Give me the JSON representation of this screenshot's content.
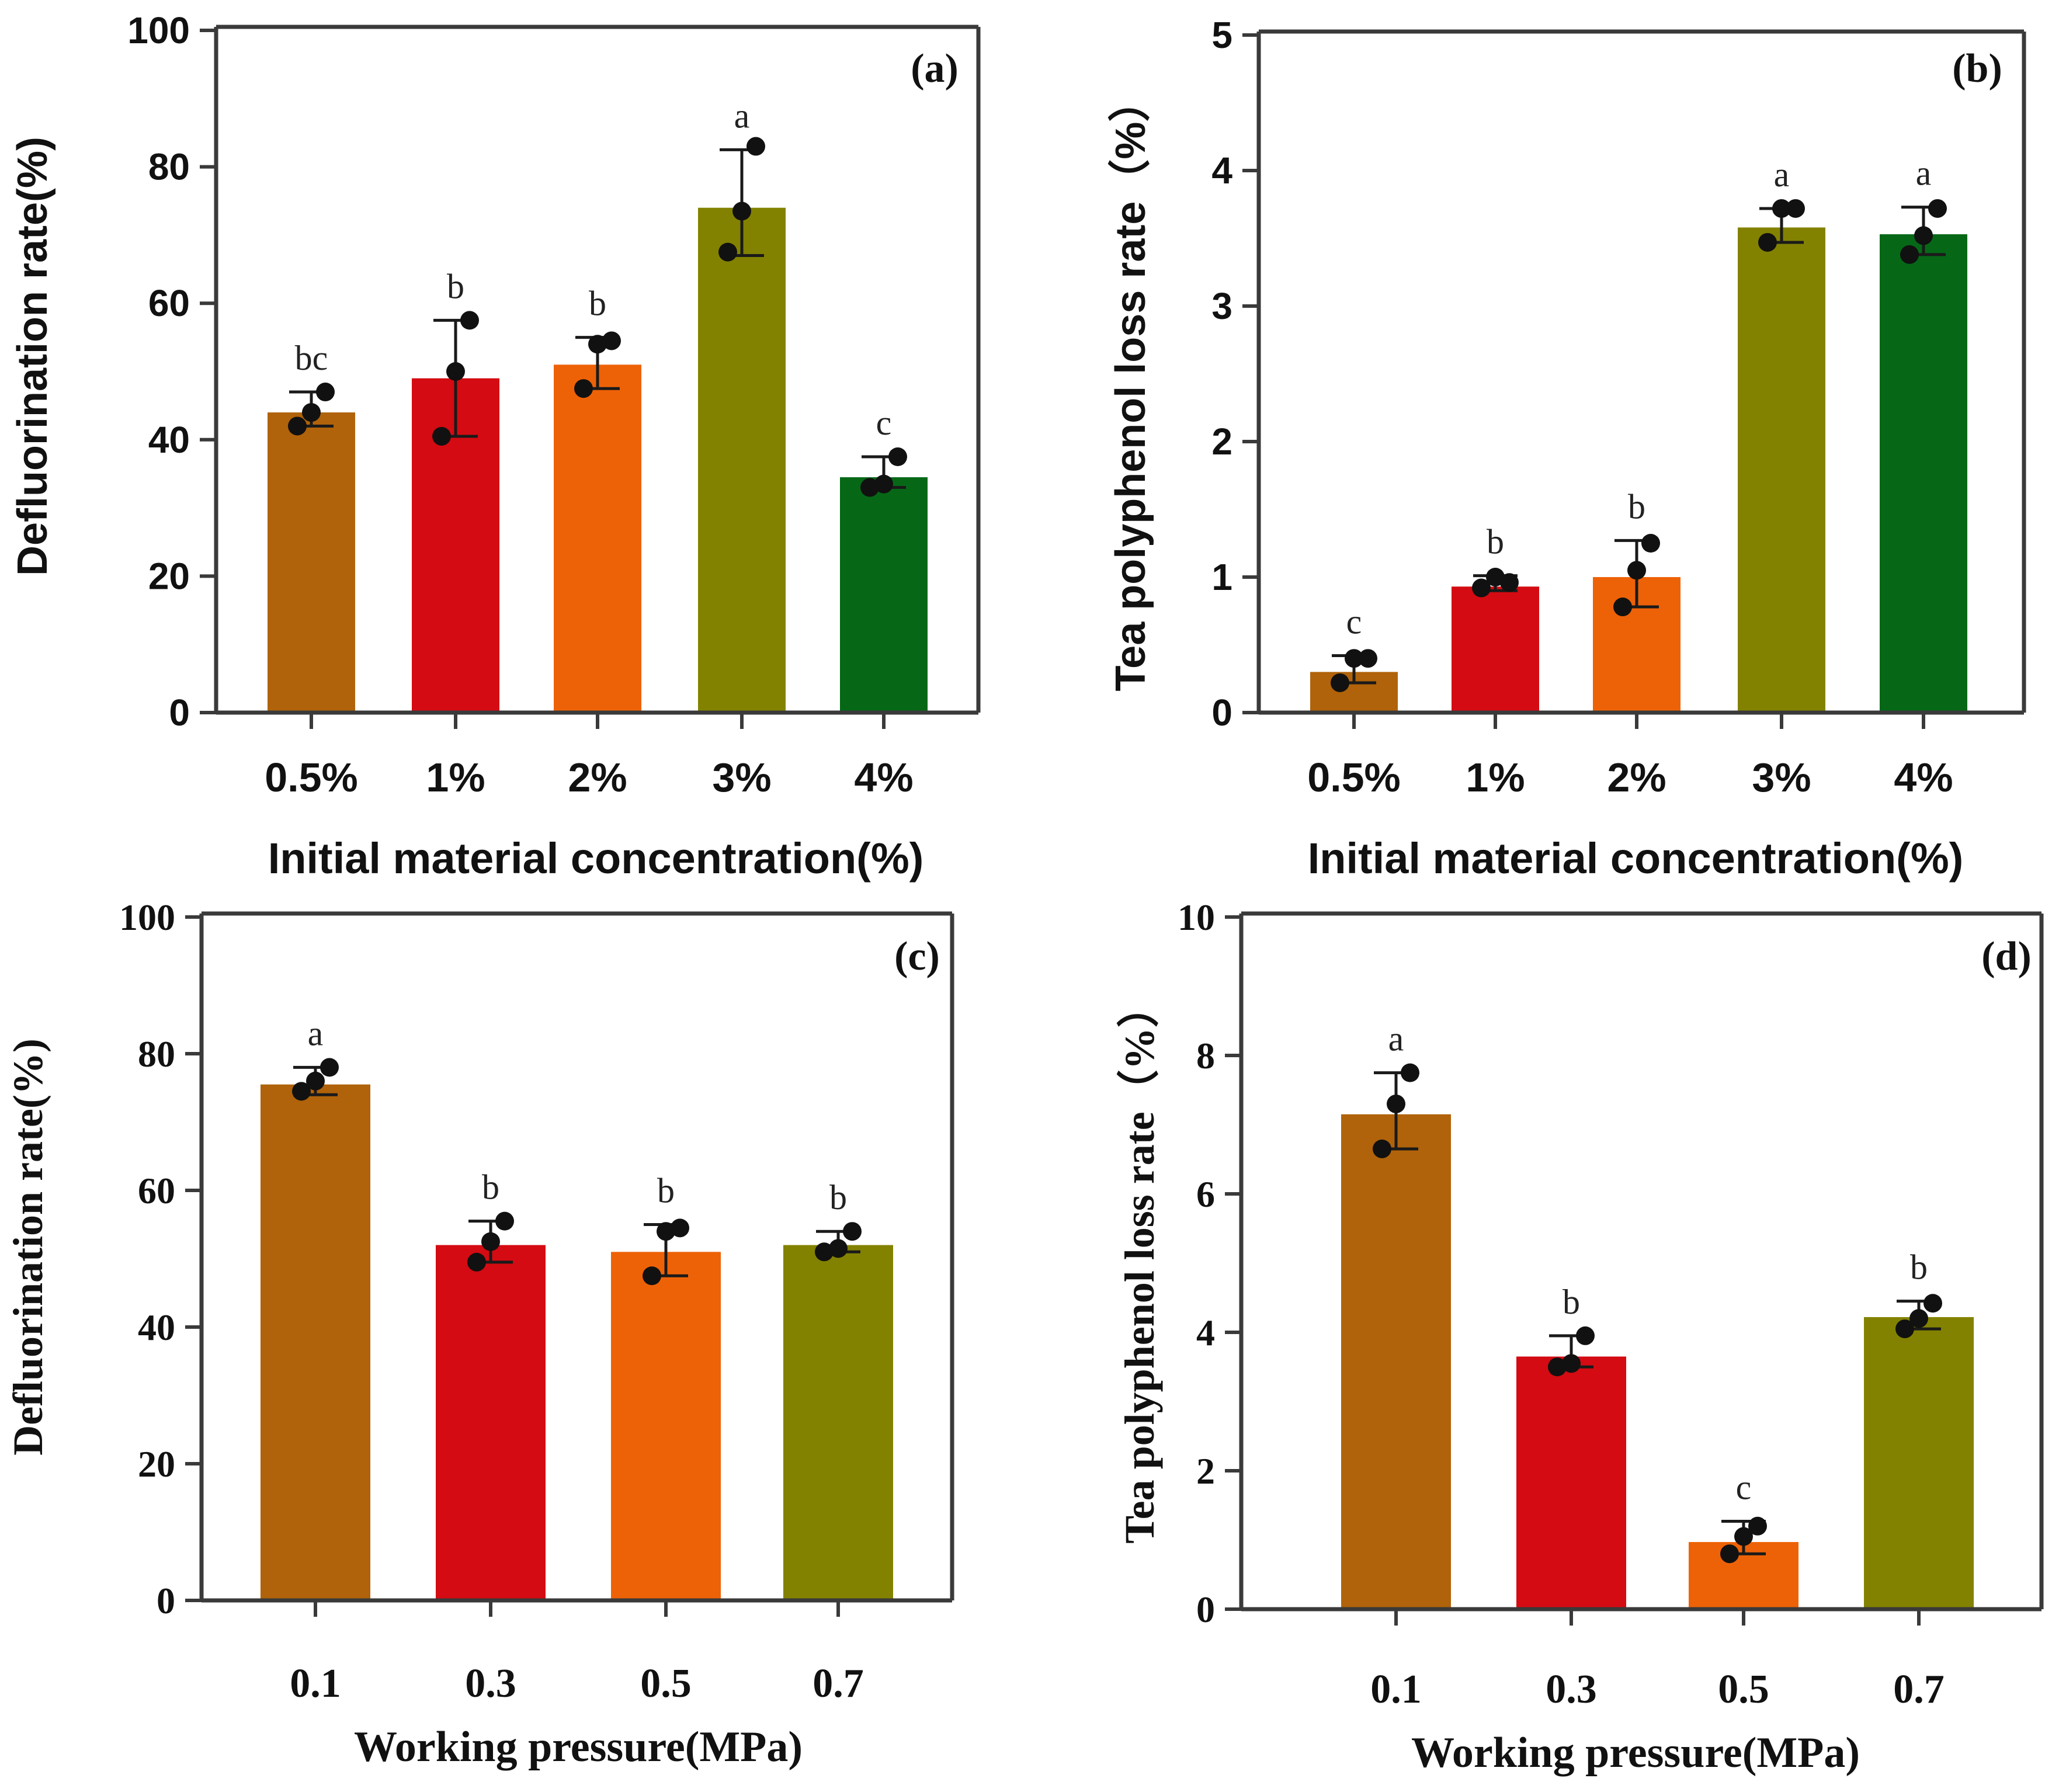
{
  "chart_data": [
    {
      "type": "bar",
      "panel_label": "(a)",
      "title": "",
      "xlabel": "Initial material concentration(%)",
      "ylabel": "Defluorination rate(%)",
      "ylim": [
        0,
        100
      ],
      "yticks": [
        "0",
        "20",
        "40",
        "60",
        "80",
        "100"
      ],
      "categories": [
        "0.5%",
        "1%",
        "2%",
        "3%",
        "4%"
      ],
      "values": [
        44,
        49,
        51,
        74,
        34.5
      ],
      "error_high": [
        47,
        57.5,
        55,
        82.5,
        37.5
      ],
      "error_low": [
        42,
        40.5,
        47.5,
        67,
        33
      ],
      "points": [
        [
          42,
          44,
          47
        ],
        [
          40.5,
          50,
          57.5
        ],
        [
          47.5,
          54,
          54.5
        ],
        [
          67.5,
          73.5,
          83
        ],
        [
          33,
          33.5,
          37.5
        ]
      ],
      "significance": [
        "bc",
        "b",
        "b",
        "a",
        "c"
      ],
      "colors": [
        "#B0630A",
        "#D40B12",
        "#EE6207",
        "#838200",
        "#066817"
      ],
      "grid": false
    },
    {
      "type": "bar",
      "panel_label": "(b)",
      "title": "",
      "xlabel": "Initial material concentration(%)",
      "ylabel": "Tea polyphenol loss rate（%）",
      "ylim": [
        0,
        5
      ],
      "yticks": [
        "0",
        "1",
        "2",
        "3",
        "4",
        "5"
      ],
      "categories": [
        "0.5%",
        "1%",
        "2%",
        "3%",
        "4%"
      ],
      "values": [
        0.3,
        0.93,
        1.0,
        3.58,
        3.53
      ],
      "error_high": [
        0.42,
        1.01,
        1.27,
        3.72,
        3.73
      ],
      "error_low": [
        0.22,
        0.9,
        0.78,
        3.47,
        3.38
      ],
      "points": [
        [
          0.22,
          0.4,
          0.4
        ],
        [
          0.92,
          1.0,
          0.96
        ],
        [
          0.78,
          1.05,
          1.25
        ],
        [
          3.47,
          3.72,
          3.72
        ],
        [
          3.38,
          3.52,
          3.72
        ]
      ],
      "significance": [
        "c",
        "b",
        "b",
        "a",
        "a"
      ],
      "colors": [
        "#B0630A",
        "#D40B12",
        "#EE6207",
        "#838200",
        "#066817"
      ],
      "grid": false
    },
    {
      "type": "bar",
      "panel_label": "(c)",
      "title": "",
      "xlabel": "Working pressure(MPa)",
      "ylabel": "Defluorination rate(%)",
      "ylim": [
        0,
        100
      ],
      "yticks": [
        "0",
        "20",
        "40",
        "60",
        "80",
        "100"
      ],
      "categories": [
        "0.1",
        "0.3",
        "0.5",
        "0.7"
      ],
      "values": [
        75.5,
        52,
        51,
        52
      ],
      "error_high": [
        78,
        55.5,
        55,
        54
      ],
      "error_low": [
        74,
        49.5,
        47.5,
        51
      ],
      "points": [
        [
          74.5,
          76,
          78
        ],
        [
          49.5,
          52.5,
          55.5
        ],
        [
          47.5,
          54,
          54.5
        ],
        [
          51,
          51.5,
          54
        ]
      ],
      "significance": [
        "a",
        "b",
        "b",
        "b"
      ],
      "colors": [
        "#B0630A",
        "#D40B12",
        "#EE6207",
        "#838200"
      ],
      "grid": false
    },
    {
      "type": "bar",
      "panel_label": "(d)",
      "title": "",
      "xlabel": "Working pressure(MPa)",
      "ylabel": "Tea polyphenol loss rate（%）",
      "ylim": [
        0,
        10
      ],
      "yticks": [
        "0",
        "2",
        "4",
        "6",
        "8",
        "10"
      ],
      "categories": [
        "0.1",
        "0.3",
        "0.5",
        "0.7"
      ],
      "values": [
        7.15,
        3.65,
        0.97,
        4.22
      ],
      "error_high": [
        7.75,
        3.95,
        1.27,
        4.45
      ],
      "error_low": [
        6.65,
        3.5,
        0.8,
        4.05
      ],
      "points": [
        [
          6.65,
          7.3,
          7.75
        ],
        [
          3.5,
          3.55,
          3.95
        ],
        [
          0.8,
          1.05,
          1.2
        ],
        [
          4.05,
          4.2,
          4.42
        ]
      ],
      "significance": [
        "a",
        "b",
        "c",
        "b"
      ],
      "colors": [
        "#B0630A",
        "#D40B12",
        "#EE6207",
        "#838200"
      ],
      "grid": false
    }
  ]
}
